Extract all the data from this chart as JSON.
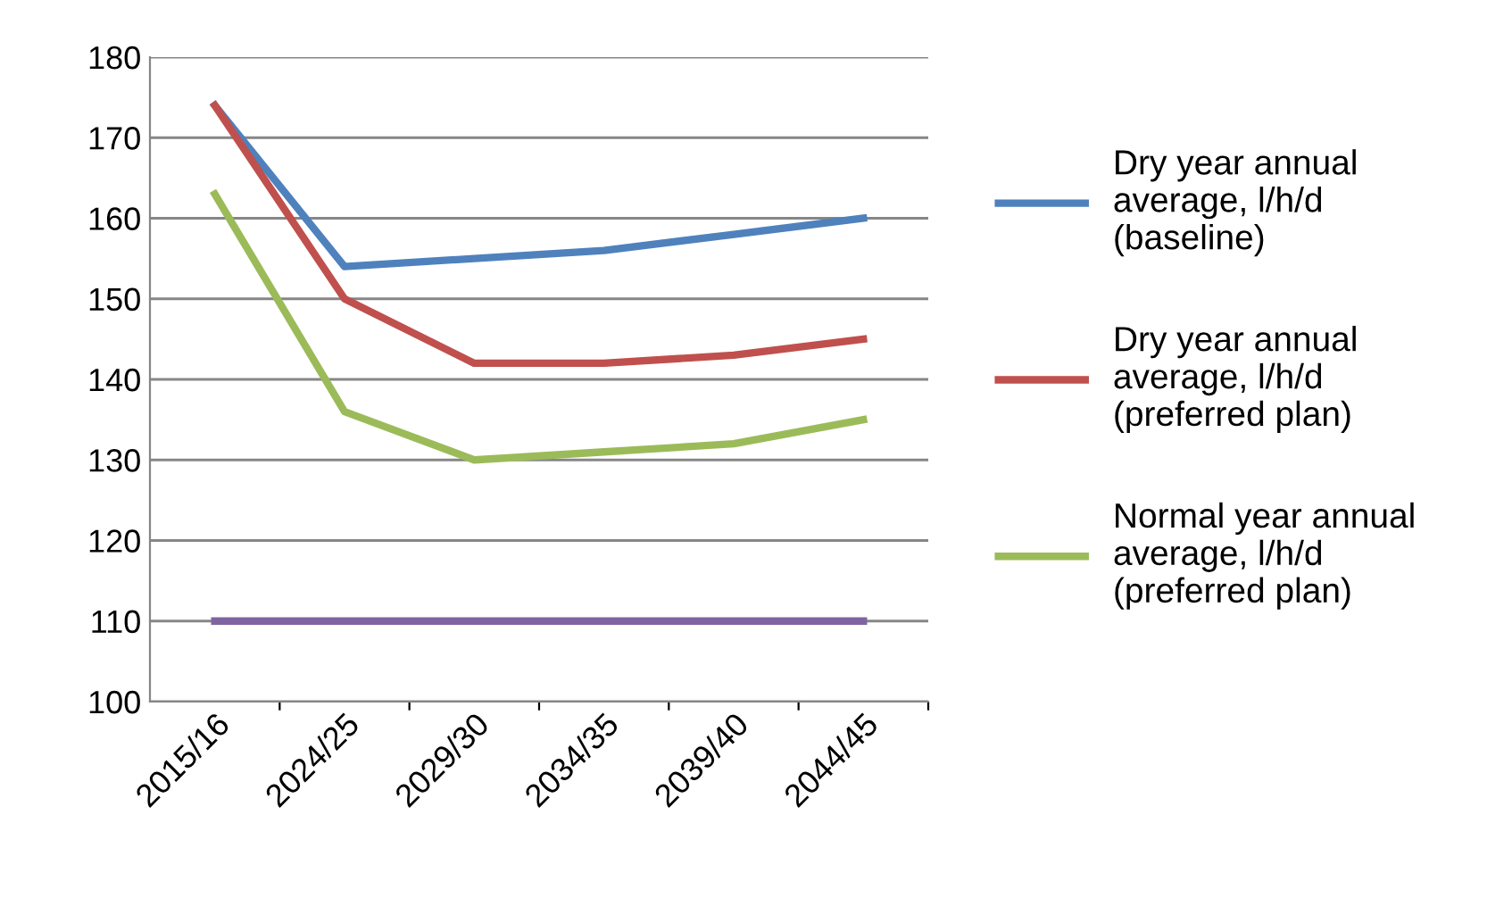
{
  "chart_data": {
    "type": "line",
    "categories": [
      "2015/16",
      "2024/25",
      "2029/30",
      "2034/35",
      "2039/40",
      "2044/45"
    ],
    "series": [
      {
        "name": "Dry year annual average, l/h/d (baseline)",
        "color": "#4f81bd",
        "values": [
          174,
          154,
          155,
          156,
          158,
          160
        ]
      },
      {
        "name": "Dry year annual average, l/h/d (preferred plan)",
        "color": "#c0504d",
        "values": [
          174,
          150,
          142,
          142,
          143,
          145
        ]
      },
      {
        "name": "Normal year annual average, l/h/d (preferred plan)",
        "color": "#9bbb59",
        "values": [
          163,
          136,
          130,
          131,
          132,
          135
        ]
      },
      {
        "color": "#8064a2",
        "values": [
          110,
          110,
          110,
          110,
          110,
          110
        ]
      }
    ],
    "ylim": [
      100,
      180
    ],
    "yticks": [
      100,
      110,
      120,
      130,
      140,
      150,
      160,
      170,
      180
    ],
    "grid": "y",
    "legend": "right",
    "marker": "none",
    "line_style": "solid"
  }
}
